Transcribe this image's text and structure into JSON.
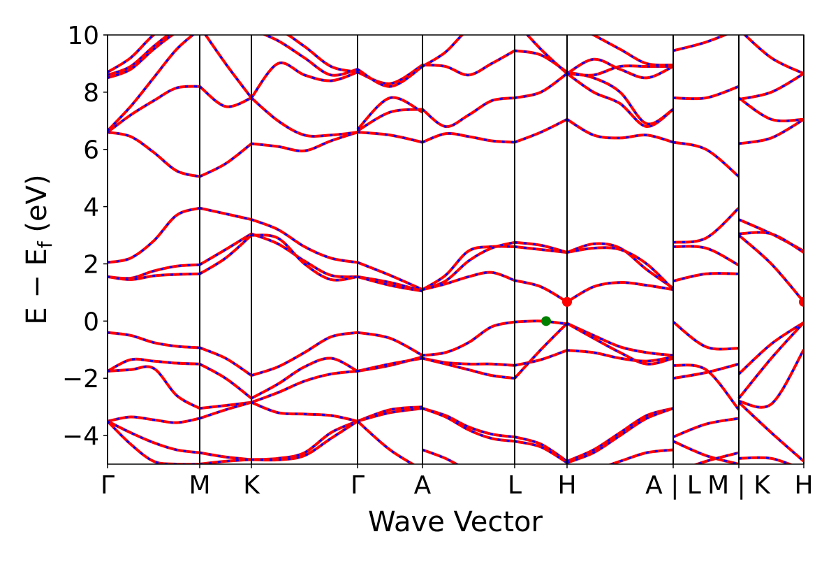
{
  "chart_data": {
    "type": "line",
    "title": "",
    "xlabel": "Wave Vector",
    "ylabel": "E − E",
    "ylabel_sub": "f",
    "ylabel_unit": " (eV)",
    "ylim": [
      -5,
      10
    ],
    "xlim": [
      0,
      9.97
    ],
    "yticks": [
      -4,
      -2,
      0,
      2,
      4,
      6,
      8,
      10
    ],
    "ytick_labels": [
      "−4",
      "−2",
      "0",
      "2",
      "4",
      "6",
      "8",
      "10"
    ],
    "kpoints": [
      {
        "label": "Γ",
        "k": 0
      },
      {
        "label": "M",
        "k": 1.32
      },
      {
        "label": "K",
        "k": 2.06
      },
      {
        "label": "Γ",
        "k": 3.58
      },
      {
        "label": "A",
        "k": 4.51
      },
      {
        "label": "L",
        "k": 5.83
      },
      {
        "label": "H",
        "k": 6.58
      },
      {
        "label": "A | L",
        "k": 8.1
      },
      {
        "label": "M | K",
        "k": 9.04
      },
      {
        "label": "H",
        "k": 9.97
      }
    ],
    "colors": {
      "band_solid": "#ff0000",
      "band_dash": "#0000ff",
      "vbm": "#008000",
      "cbm": "#ff0000"
    },
    "segments": [
      {
        "from": 0,
        "to": 1,
        "bands": [
          [
            -0.4,
            -0.5,
            -0.75,
            -0.88,
            -0.93
          ],
          [
            -1.75,
            -1.35,
            -1.4,
            -1.47,
            -1.5
          ],
          [
            -1.75,
            -1.7,
            -1.65,
            -2.6,
            -3.05
          ],
          [
            -3.5,
            -3.35,
            -3.45,
            -3.55,
            -3.4
          ],
          [
            -3.5,
            -3.9,
            -4.25,
            -4.5,
            -4.6
          ],
          [
            -3.5,
            -4.3,
            -4.9,
            -5.0,
            -5.0
          ],
          [
            2.05,
            2.2,
            2.8,
            3.7,
            3.95
          ],
          [
            1.55,
            1.5,
            1.75,
            1.92,
            1.97
          ],
          [
            1.55,
            1.45,
            1.58,
            1.63,
            1.65
          ],
          [
            6.6,
            6.45,
            5.9,
            5.25,
            5.05
          ],
          [
            6.6,
            7.2,
            7.7,
            8.15,
            8.2
          ],
          [
            6.65,
            7.5,
            8.5,
            9.5,
            10.2
          ],
          [
            8.7,
            9.2,
            10,
            10.5,
            10.5
          ],
          [
            8.6,
            8.9,
            9.6,
            10.2,
            10.5
          ],
          [
            8.5,
            8.8,
            9.5,
            10.1,
            10.5
          ]
        ]
      },
      {
        "from": 1,
        "to": 2,
        "bands": [
          [
            3.95,
            3.75,
            3.55
          ],
          [
            1.97,
            2.5,
            3.05
          ],
          [
            1.65,
            2.2,
            3.0
          ],
          [
            -0.93,
            -1.3,
            -1.9
          ],
          [
            -1.5,
            -2.0,
            -2.7
          ],
          [
            -3.05,
            -2.95,
            -2.84
          ],
          [
            -3.4,
            -3.1,
            -2.84
          ],
          [
            -4.6,
            -4.75,
            -4.84
          ],
          [
            -5.0,
            -4.9,
            -4.84
          ],
          [
            5.05,
            5.5,
            6.2
          ],
          [
            8.2,
            7.5,
            7.8
          ],
          [
            10.3,
            9.0,
            7.8
          ]
        ]
      },
      {
        "from": 2,
        "to": 3,
        "bands": [
          [
            3.55,
            3.2,
            2.6,
            2.2,
            2.05
          ],
          [
            3.05,
            2.7,
            2.1,
            1.6,
            1.55
          ],
          [
            3.0,
            2.9,
            2.0,
            1.45,
            1.55
          ],
          [
            -1.9,
            -1.6,
            -1.1,
            -0.55,
            -0.4
          ],
          [
            -2.7,
            -2.2,
            -1.6,
            -1.3,
            -1.75
          ],
          [
            -2.84,
            -2.5,
            -2.1,
            -1.85,
            -1.75
          ],
          [
            -2.84,
            -3.2,
            -3.25,
            -3.3,
            -3.5
          ],
          [
            -4.84,
            -4.8,
            -4.6,
            -3.9,
            -3.5
          ],
          [
            -4.84,
            -4.85,
            -4.7,
            -4.1,
            -3.5
          ],
          [
            6.2,
            6.1,
            5.95,
            6.3,
            6.6
          ],
          [
            7.8,
            7.0,
            6.5,
            6.5,
            6.6
          ],
          [
            7.8,
            9.0,
            8.6,
            8.4,
            8.7
          ],
          [
            10.2,
            9.8,
            9.2,
            8.6,
            8.8
          ],
          [
            10.4,
            10.2,
            9.6,
            8.9,
            8.7
          ]
        ]
      },
      {
        "from": 3,
        "to": 4,
        "bands": [
          [
            2.05,
            1.6,
            1.1
          ],
          [
            1.55,
            1.35,
            1.05
          ],
          [
            1.55,
            1.25,
            1.05
          ],
          [
            -0.4,
            -0.6,
            -1.2
          ],
          [
            -1.75,
            -1.55,
            -1.25
          ],
          [
            -1.75,
            -1.5,
            -1.3
          ],
          [
            -3.5,
            -3.1,
            -3.0
          ],
          [
            -3.5,
            -3.2,
            -3.05
          ],
          [
            -3.5,
            -4.5,
            -5.2
          ],
          [
            6.6,
            6.5,
            6.25
          ],
          [
            6.65,
            7.3,
            7.4
          ],
          [
            6.7,
            7.8,
            7.3
          ],
          [
            8.7,
            8.3,
            8.95
          ],
          [
            8.8,
            8.2,
            8.9
          ]
        ]
      },
      {
        "from": 4,
        "to": 5,
        "bands": [
          [
            1.1,
            1.6,
            2.45,
            2.6,
            2.6
          ],
          [
            1.1,
            1.4,
            2.1,
            2.55,
            2.75
          ],
          [
            1.1,
            1.3,
            1.55,
            1.7,
            1.42
          ],
          [
            -1.2,
            -1.1,
            -0.75,
            -0.2,
            -0.03
          ],
          [
            -1.3,
            -1.45,
            -1.5,
            -1.5,
            -1.55
          ],
          [
            -1.3,
            -1.5,
            -1.7,
            -1.9,
            -2.0
          ],
          [
            -3.05,
            -3.3,
            -3.7,
            -3.95,
            -4.05
          ],
          [
            -3.05,
            -3.35,
            -3.8,
            -4.1,
            -4.2
          ],
          [
            -4.5,
            -4.8,
            -5.2,
            -5.3,
            -5.3
          ],
          [
            6.25,
            6.55,
            6.45,
            6.3,
            6.25
          ],
          [
            7.4,
            6.8,
            7.2,
            7.7,
            7.8
          ],
          [
            8.95,
            8.9,
            8.6,
            9.0,
            9.45
          ],
          [
            8.9,
            9.4,
            10.2,
            10.5,
            10.5
          ]
        ]
      },
      {
        "from": 5,
        "to": 6,
        "bands": [
          [
            2.6,
            2.5,
            2.4
          ],
          [
            2.75,
            2.65,
            2.4
          ],
          [
            1.42,
            1.2,
            0.67
          ],
          [
            -0.03,
            0.0,
            -0.1
          ],
          [
            -1.55,
            -1.35,
            -1.02
          ],
          [
            -2.0,
            -1.0,
            -0.08
          ],
          [
            -4.05,
            -4.3,
            -4.9
          ],
          [
            -4.2,
            -4.4,
            -4.95
          ],
          [
            6.25,
            6.6,
            7.05
          ],
          [
            7.8,
            8.0,
            8.65
          ],
          [
            9.45,
            9.3,
            8.7
          ],
          [
            10.5,
            9.5,
            8.65
          ]
        ]
      },
      {
        "from": 6,
        "to": 7,
        "bands": [
          [
            2.4,
            2.7,
            2.55,
            1.8,
            1.15
          ],
          [
            2.4,
            2.55,
            2.5,
            2.0,
            1.1
          ],
          [
            0.67,
            1.2,
            1.35,
            1.25,
            1.1
          ],
          [
            -0.08,
            -0.5,
            -0.9,
            -1.1,
            -1.2
          ],
          [
            -0.08,
            -0.6,
            -1.1,
            -1.5,
            -1.3
          ],
          [
            -1.02,
            -1.1,
            -1.3,
            -1.4,
            -1.25
          ],
          [
            -4.9,
            -4.5,
            -3.9,
            -3.3,
            -3.05
          ],
          [
            -4.95,
            -4.6,
            -4.0,
            -3.4,
            -3.05
          ],
          [
            -5.3,
            -5.2,
            -4.9,
            -4.6,
            -4.5
          ],
          [
            7.05,
            6.5,
            6.4,
            6.5,
            6.25
          ],
          [
            8.65,
            8.0,
            7.6,
            6.8,
            7.4
          ],
          [
            8.7,
            8.5,
            8.0,
            6.9,
            7.4
          ],
          [
            8.65,
            9.15,
            8.8,
            8.5,
            8.9
          ],
          [
            8.65,
            8.6,
            8.9,
            8.9,
            8.9
          ],
          [
            10.5,
            10,
            9.5,
            9,
            8.95
          ]
        ]
      },
      {
        "from": 7,
        "to": 8,
        "bands": [
          [
            2.75,
            2.9,
            3.95
          ],
          [
            2.6,
            2.55,
            1.95
          ],
          [
            1.4,
            1.65,
            1.65
          ],
          [
            -0.03,
            -0.9,
            -0.95
          ],
          [
            -1.55,
            -1.7,
            -3.1
          ],
          [
            -2.0,
            -1.8,
            -1.5
          ],
          [
            -4.05,
            -3.6,
            -3.4
          ],
          [
            -4.2,
            -4.7,
            -5.0
          ],
          [
            -5.3,
            -4.9,
            -4.6
          ],
          [
            6.25,
            6.0,
            5.05
          ],
          [
            7.8,
            7.8,
            8.2
          ],
          [
            9.45,
            9.75,
            10.2
          ]
        ]
      },
      {
        "from": 8,
        "to": 9,
        "bands": [
          [
            3.55,
            3.05,
            2.45
          ],
          [
            3.05,
            3.05,
            2.4
          ],
          [
            3.0,
            2.0,
            0.67
          ],
          [
            -1.85,
            -0.8,
            -0.05
          ],
          [
            -2.7,
            -1.3,
            -0.05
          ],
          [
            -2.8,
            -2.9,
            -1.0
          ],
          [
            -2.84,
            -3.9,
            -4.9
          ],
          [
            -4.8,
            -4.8,
            -5.2
          ],
          [
            6.2,
            6.4,
            7.05
          ],
          [
            7.8,
            7.05,
            7.05
          ],
          [
            7.75,
            8.0,
            8.65
          ],
          [
            10.2,
            9.2,
            8.65
          ]
        ]
      }
    ],
    "markers": [
      {
        "name": "vbm",
        "k": 6.28,
        "E": 0.0,
        "color": "#008000"
      },
      {
        "name": "cbm",
        "k": 6.58,
        "E": 0.67,
        "color": "#ff0000"
      },
      {
        "name": "cbm",
        "k": 9.97,
        "E": 0.67,
        "color": "#ff0000"
      }
    ]
  }
}
